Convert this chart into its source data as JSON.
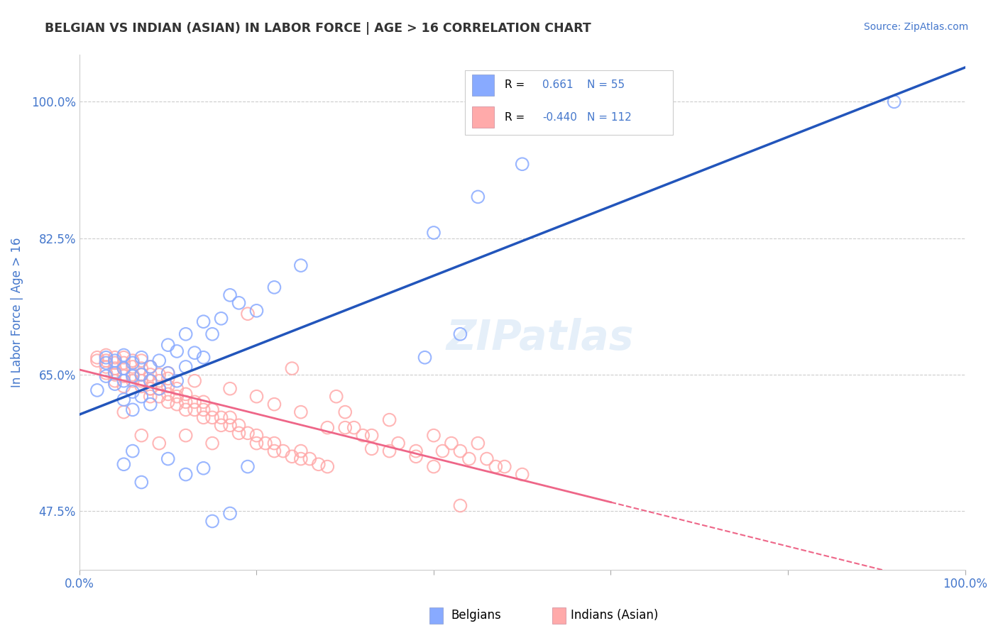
{
  "title": "BELGIAN VS INDIAN (ASIAN) IN LABOR FORCE | AGE > 16 CORRELATION CHART",
  "source": "Source: ZipAtlas.com",
  "ylabel": "In Labor Force | Age > 16",
  "xlim": [
    0.0,
    1.0
  ],
  "ylim": [
    0.4,
    1.06
  ],
  "ytick_positions": [
    0.475,
    0.65,
    0.825,
    1.0
  ],
  "ytick_labels": [
    "47.5%",
    "65.0%",
    "82.5%",
    "100.0%"
  ],
  "xtick_positions": [
    0.0,
    0.2,
    0.4,
    0.6,
    0.8,
    1.0
  ],
  "xtick_labels": [
    "0.0%",
    "",
    "",
    "",
    "",
    "100.0%"
  ],
  "grid_color": "#cccccc",
  "background_color": "#ffffff",
  "legend_R1": "0.661",
  "legend_N1": "55",
  "legend_R2": "-0.440",
  "legend_N2": "112",
  "blue_marker_color": "#88aaff",
  "pink_marker_color": "#ffaaaa",
  "blue_line_color": "#2255bb",
  "pink_line_color": "#ee6688",
  "title_color": "#333333",
  "axis_label_color": "#4477cc",
  "watermark": "ZIPatlas",
  "blue_scatter": [
    [
      0.02,
      0.63
    ],
    [
      0.03,
      0.648
    ],
    [
      0.03,
      0.665
    ],
    [
      0.03,
      0.672
    ],
    [
      0.04,
      0.638
    ],
    [
      0.04,
      0.652
    ],
    [
      0.04,
      0.668
    ],
    [
      0.05,
      0.618
    ],
    [
      0.05,
      0.642
    ],
    [
      0.05,
      0.658
    ],
    [
      0.05,
      0.675
    ],
    [
      0.06,
      0.605
    ],
    [
      0.06,
      0.628
    ],
    [
      0.06,
      0.648
    ],
    [
      0.06,
      0.665
    ],
    [
      0.07,
      0.622
    ],
    [
      0.07,
      0.65
    ],
    [
      0.07,
      0.672
    ],
    [
      0.08,
      0.612
    ],
    [
      0.08,
      0.642
    ],
    [
      0.08,
      0.66
    ],
    [
      0.09,
      0.632
    ],
    [
      0.09,
      0.668
    ],
    [
      0.1,
      0.652
    ],
    [
      0.1,
      0.688
    ],
    [
      0.11,
      0.642
    ],
    [
      0.11,
      0.68
    ],
    [
      0.12,
      0.66
    ],
    [
      0.12,
      0.702
    ],
    [
      0.13,
      0.678
    ],
    [
      0.14,
      0.672
    ],
    [
      0.14,
      0.718
    ],
    [
      0.15,
      0.702
    ],
    [
      0.16,
      0.722
    ],
    [
      0.17,
      0.752
    ],
    [
      0.18,
      0.742
    ],
    [
      0.2,
      0.732
    ],
    [
      0.22,
      0.762
    ],
    [
      0.25,
      0.79
    ],
    [
      0.05,
      0.535
    ],
    [
      0.06,
      0.552
    ],
    [
      0.07,
      0.512
    ],
    [
      0.1,
      0.542
    ],
    [
      0.12,
      0.522
    ],
    [
      0.14,
      0.53
    ],
    [
      0.15,
      0.462
    ],
    [
      0.17,
      0.472
    ],
    [
      0.19,
      0.532
    ],
    [
      0.39,
      0.672
    ],
    [
      0.4,
      0.832
    ],
    [
      0.43,
      0.702
    ],
    [
      0.45,
      0.878
    ],
    [
      0.5,
      0.92
    ],
    [
      0.92,
      1.0
    ]
  ],
  "pink_scatter": [
    [
      0.02,
      0.668
    ],
    [
      0.02,
      0.672
    ],
    [
      0.03,
      0.652
    ],
    [
      0.03,
      0.66
    ],
    [
      0.03,
      0.668
    ],
    [
      0.03,
      0.675
    ],
    [
      0.04,
      0.642
    ],
    [
      0.04,
      0.65
    ],
    [
      0.04,
      0.658
    ],
    [
      0.04,
      0.665
    ],
    [
      0.04,
      0.672
    ],
    [
      0.05,
      0.635
    ],
    [
      0.05,
      0.648
    ],
    [
      0.05,
      0.658
    ],
    [
      0.05,
      0.665
    ],
    [
      0.05,
      0.672
    ],
    [
      0.06,
      0.642
    ],
    [
      0.06,
      0.65
    ],
    [
      0.06,
      0.66
    ],
    [
      0.06,
      0.668
    ],
    [
      0.07,
      0.635
    ],
    [
      0.07,
      0.642
    ],
    [
      0.07,
      0.65
    ],
    [
      0.07,
      0.658
    ],
    [
      0.07,
      0.668
    ],
    [
      0.08,
      0.622
    ],
    [
      0.08,
      0.632
    ],
    [
      0.08,
      0.642
    ],
    [
      0.08,
      0.65
    ],
    [
      0.08,
      0.66
    ],
    [
      0.09,
      0.622
    ],
    [
      0.09,
      0.632
    ],
    [
      0.09,
      0.642
    ],
    [
      0.09,
      0.65
    ],
    [
      0.1,
      0.615
    ],
    [
      0.1,
      0.625
    ],
    [
      0.1,
      0.635
    ],
    [
      0.1,
      0.645
    ],
    [
      0.11,
      0.612
    ],
    [
      0.11,
      0.622
    ],
    [
      0.11,
      0.632
    ],
    [
      0.12,
      0.605
    ],
    [
      0.12,
      0.615
    ],
    [
      0.12,
      0.625
    ],
    [
      0.13,
      0.605
    ],
    [
      0.13,
      0.615
    ],
    [
      0.14,
      0.595
    ],
    [
      0.14,
      0.605
    ],
    [
      0.14,
      0.615
    ],
    [
      0.15,
      0.595
    ],
    [
      0.15,
      0.605
    ],
    [
      0.16,
      0.585
    ],
    [
      0.16,
      0.595
    ],
    [
      0.17,
      0.585
    ],
    [
      0.17,
      0.595
    ],
    [
      0.18,
      0.575
    ],
    [
      0.18,
      0.585
    ],
    [
      0.19,
      0.575
    ],
    [
      0.2,
      0.562
    ],
    [
      0.2,
      0.572
    ],
    [
      0.21,
      0.562
    ],
    [
      0.22,
      0.552
    ],
    [
      0.22,
      0.562
    ],
    [
      0.23,
      0.552
    ],
    [
      0.24,
      0.545
    ],
    [
      0.25,
      0.542
    ],
    [
      0.25,
      0.552
    ],
    [
      0.26,
      0.542
    ],
    [
      0.27,
      0.535
    ],
    [
      0.28,
      0.532
    ],
    [
      0.29,
      0.622
    ],
    [
      0.3,
      0.602
    ],
    [
      0.31,
      0.582
    ],
    [
      0.32,
      0.572
    ],
    [
      0.33,
      0.555
    ],
    [
      0.35,
      0.552
    ],
    [
      0.36,
      0.562
    ],
    [
      0.38,
      0.545
    ],
    [
      0.4,
      0.572
    ],
    [
      0.41,
      0.552
    ],
    [
      0.43,
      0.552
    ],
    [
      0.44,
      0.542
    ],
    [
      0.46,
      0.542
    ],
    [
      0.47,
      0.532
    ],
    [
      0.48,
      0.532
    ],
    [
      0.5,
      0.522
    ],
    [
      0.12,
      0.572
    ],
    [
      0.07,
      0.572
    ],
    [
      0.09,
      0.562
    ],
    [
      0.19,
      0.728
    ],
    [
      0.24,
      0.658
    ],
    [
      0.28,
      0.582
    ],
    [
      0.08,
      0.632
    ],
    [
      0.43,
      0.482
    ],
    [
      0.15,
      0.562
    ],
    [
      0.2,
      0.622
    ],
    [
      0.38,
      0.552
    ],
    [
      0.05,
      0.602
    ],
    [
      0.4,
      0.532
    ],
    [
      0.13,
      0.642
    ],
    [
      0.1,
      0.652
    ],
    [
      0.25,
      0.602
    ],
    [
      0.3,
      0.582
    ],
    [
      0.17,
      0.632
    ],
    [
      0.22,
      0.612
    ],
    [
      0.33,
      0.572
    ],
    [
      0.42,
      0.562
    ],
    [
      0.35,
      0.592
    ],
    [
      0.45,
      0.562
    ]
  ]
}
